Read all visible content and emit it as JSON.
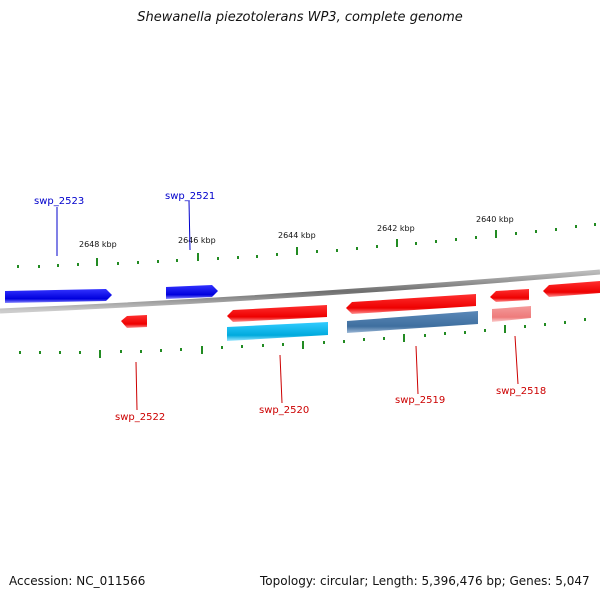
{
  "title": "Shewanella piezotolerans WP3, complete genome",
  "footer": {
    "accession": "Accession: NC_011566",
    "summary": "Topology: circular; Length: 5,396,476 bp; Genes: 5,047"
  },
  "scale_labels": [
    "2648 kbp",
    "2646 kbp",
    "2644 kbp",
    "2642 kbp",
    "2640 kbp"
  ],
  "gene_labels": [
    {
      "id": "swp_2523",
      "strand": "plus",
      "color": "#0000cc"
    },
    {
      "id": "swp_2521",
      "strand": "plus",
      "color": "#0000cc"
    },
    {
      "id": "swp_2522",
      "strand": "minus",
      "color": "#cc0000"
    },
    {
      "id": "swp_2520",
      "strand": "minus",
      "color": "#cc0000"
    },
    {
      "id": "swp_2519",
      "strand": "minus",
      "color": "#cc0000"
    },
    {
      "id": "swp_2518",
      "strand": "minus",
      "color": "#cc0000"
    }
  ],
  "colors": {
    "plus_strand_gene": "#0000ee",
    "minus_strand_gene": "#ee0000",
    "cds_feature_cyan": "#00bfff",
    "cds_feature_steel": "#4a7aa8",
    "rna_feature_pink": "#f08080",
    "backbone": "#808080",
    "tick": "#228b22"
  }
}
